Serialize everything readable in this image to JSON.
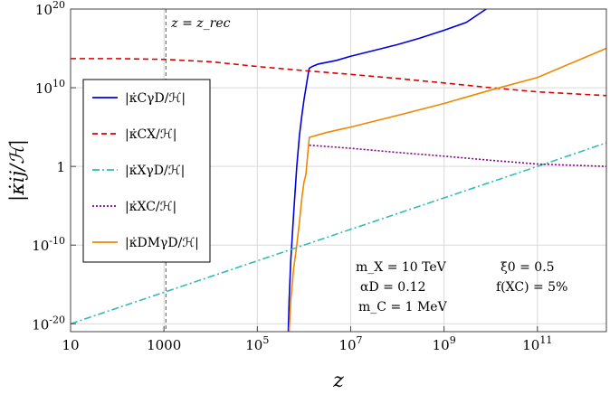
{
  "chart_data": {
    "type": "line",
    "xlabel": "z",
    "ylabel": "|κ̇ij/ℋ|",
    "x_scale": "log",
    "y_scale": "log",
    "xlim": [
      10,
      3000000000000.0
    ],
    "ylim": [
      1e-21,
      1e+20
    ],
    "x_ticks": [
      {
        "value": 10,
        "label": "10"
      },
      {
        "value": 1000,
        "label": "1000"
      },
      {
        "value": 100000,
        "label": "10^5"
      },
      {
        "value": 10000000,
        "label": "10^7"
      },
      {
        "value": 1000000000,
        "label": "10^9"
      },
      {
        "value": 100000000000,
        "label": "10^11"
      }
    ],
    "y_ticks": [
      {
        "value": 1e+20,
        "label": "10^20"
      },
      {
        "value": 10000000000.0,
        "label": "10^10"
      },
      {
        "value": 1,
        "label": "1"
      },
      {
        "value": 1e-10,
        "label": "10^-10"
      },
      {
        "value": 1e-20,
        "label": "10^-20"
      }
    ],
    "grid": true,
    "vline": {
      "x": 1100,
      "label": "z = z_rec"
    },
    "legend_position": "left",
    "series": [
      {
        "name": "|κ̇CγD/ℋ|",
        "color": "#0000dd",
        "dash": "solid",
        "x": [
          460000,
          480000,
          520000,
          600000,
          700000,
          800000,
          900000,
          1000000,
          1100000,
          1250000,
          1300000,
          1500000,
          2000000,
          5000000,
          10000000,
          30000000,
          100000000,
          300000000,
          1000000000,
          3000000000,
          8000000000
        ],
        "y": [
          1e-21,
          1e-17,
          1e-12,
          1e-06,
          1,
          10000.0,
          3000000.0,
          300000000.0,
          10000000000.0,
          1000000000000.0,
          3000000000000.0,
          5000000000000.0,
          10000000000000.0,
          30000000000000.0,
          100000000000000.0,
          500000000000000.0,
          3000000000000000.0,
          2e+16,
          2e+17,
          2e+18,
          1e+20
        ]
      },
      {
        "name": "|κ̇CX/ℋ|",
        "color": "#dd0000",
        "dash": "dashed",
        "x": [
          10,
          100,
          1000,
          10000,
          100000,
          1000000,
          10000000,
          100000000,
          1000000000,
          10000000000,
          100000000000,
          3000000000000
        ],
        "y": [
          50000000000000.0,
          50000000000000.0,
          40000000000000.0,
          20000000000000.0,
          5000000000000.0,
          1500000000000.0,
          500000000000.0,
          150000000000.0,
          40000000000.0,
          10000000000.0,
          3000000000.0,
          1000000000.0
        ]
      },
      {
        "name": "|κ̇XγD/ℋ|",
        "color": "#33bbbb",
        "dash": "dashdot",
        "x": [
          10,
          100,
          1000,
          10000,
          100000,
          1000000,
          10000000,
          100000000,
          1000000000,
          10000000000,
          100000000000,
          3000000000000
        ],
        "y": [
          1e-20,
          1e-18,
          1e-16,
          1e-14,
          1e-12,
          1e-10,
          1e-08,
          1e-06,
          0.0001,
          0.01,
          1,
          1000
        ]
      },
      {
        "name": "|κ̇XC/ℋ|",
        "color": "#880088",
        "dash": "dotted",
        "x": [
          1300000,
          10000000,
          100000000,
          1000000000,
          10000000000,
          100000000000,
          3000000000000
        ],
        "y": [
          500,
          200,
          60,
          20,
          6,
          2,
          1
        ]
      },
      {
        "name": "|κ̇DMγD/ℋ|",
        "color": "#ee8800",
        "dash": "solid",
        "x": [
          480000,
          520000,
          600000,
          700000,
          800000,
          900000,
          1000000,
          1100000,
          1250000,
          1300000,
          3000000,
          10000000,
          100000000,
          1000000000,
          10000000000,
          100000000000,
          3000000000000
        ],
        "y": [
          1e-21,
          1e-17,
          1e-13,
          1e-10,
          1e-07,
          0.0001,
          0.01,
          0.1,
          500.0,
          5000.0,
          20000.0,
          100000.0,
          3000000.0,
          100000000.0,
          5000000000.0,
          200000000000.0,
          1000000000000000.0
        ]
      }
    ],
    "annotations": [
      {
        "text": "m_X = 10 TeV"
      },
      {
        "text": "ξ0 = 0.5"
      },
      {
        "text": "αD = 0.12"
      },
      {
        "text": "f(XC) = 5%"
      },
      {
        "text": "m_C = 1 MeV"
      }
    ]
  }
}
